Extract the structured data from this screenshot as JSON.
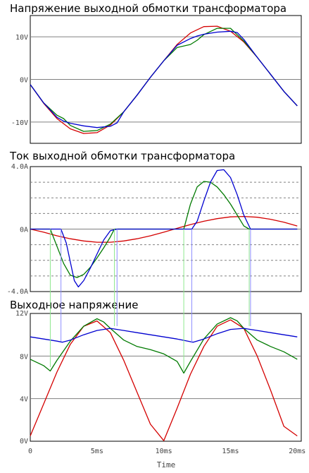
{
  "colors": {
    "background": "#ffffff",
    "frame": "#000000",
    "grid": "#808080",
    "tick_text": "#444444",
    "red": "#d40000",
    "green": "#007a00",
    "blue": "#0000d0",
    "light_green": "#8fe88f",
    "light_blue": "#8f8fff"
  },
  "chart_data": [
    {
      "type": "line",
      "title": "Напряжение выходной обмотки трансформатора",
      "xlabel": "",
      "ylabel": "",
      "xlim_ms": [
        0,
        20.3
      ],
      "ylim": [
        -15,
        15
      ],
      "yticks": [
        {
          "value": 10,
          "label": "10V"
        },
        {
          "value": 0,
          "label": "0V"
        },
        {
          "value": -10,
          "label": "-10V"
        }
      ],
      "series": [
        {
          "color": "red",
          "x": [
            0,
            1,
            2,
            3,
            4,
            5,
            6,
            7,
            8,
            9,
            10,
            11,
            12,
            13,
            14,
            15,
            16,
            17,
            18,
            19,
            20
          ],
          "y": [
            -1.2,
            -5.6,
            -9.2,
            -11.6,
            -12.7,
            -12.5,
            -10.7,
            -7.6,
            -3.7,
            0.5,
            4.4,
            8.2,
            10.9,
            12.4,
            12.5,
            11.3,
            8.8,
            5.2,
            1.2,
            -2.8,
            -6.2
          ]
        },
        {
          "color": "green",
          "x": [
            0,
            1,
            2,
            2.5,
            3,
            4,
            5,
            6,
            7,
            8,
            9,
            10,
            11,
            12,
            12.5,
            13,
            14,
            15,
            16,
            17,
            18,
            19,
            20
          ],
          "y": [
            -1.2,
            -5.5,
            -8.4,
            -9.2,
            -10.8,
            -12.2,
            -12.0,
            -10.5,
            -7.6,
            -3.7,
            0.5,
            4.4,
            7.5,
            8.2,
            9.2,
            10.5,
            12.0,
            12.0,
            9.0,
            5.2,
            1.2,
            -2.8,
            -6.2
          ]
        },
        {
          "color": "blue",
          "x": [
            0,
            1,
            2,
            2.5,
            3,
            4,
            5,
            6,
            6.5,
            7,
            8,
            9,
            10,
            11,
            12,
            12.5,
            13,
            14,
            15,
            15.5,
            16,
            17,
            18,
            19,
            20
          ],
          "y": [
            -1.2,
            -5.5,
            -8.9,
            -9.8,
            -10.3,
            -10.9,
            -11.3,
            -11.0,
            -10.2,
            -7.6,
            -3.7,
            0.5,
            4.4,
            8.0,
            9.6,
            10.2,
            10.6,
            11.1,
            11.3,
            11.0,
            9.4,
            5.2,
            1.2,
            -2.8,
            -6.2
          ]
        }
      ]
    },
    {
      "type": "line",
      "title": "Ток выходной обмотки трансформатора",
      "xlabel": "",
      "ylabel": "",
      "xlim_ms": [
        0,
        20.3
      ],
      "ylim": [
        -4,
        4
      ],
      "yticks": [
        {
          "value": 4,
          "label": "4.0A"
        },
        {
          "value": 0,
          "label": "0A"
        },
        {
          "value": -4,
          "label": "-4.0A"
        }
      ],
      "series": [
        {
          "color": "red",
          "x": [
            0,
            1,
            2,
            3,
            4,
            5,
            6,
            7,
            8,
            9,
            10,
            11,
            12,
            13,
            14,
            15,
            16,
            17,
            18,
            19,
            20
          ],
          "y": [
            0,
            -0.2,
            -0.43,
            -0.62,
            -0.76,
            -0.84,
            -0.84,
            -0.76,
            -0.62,
            -0.43,
            -0.2,
            0.05,
            0.29,
            0.5,
            0.67,
            0.78,
            0.81,
            0.76,
            0.63,
            0.44,
            0.2
          ]
        },
        {
          "color": "green",
          "x": [
            0,
            1.5,
            2,
            2.5,
            3,
            3.5,
            4,
            4.5,
            5,
            5.5,
            6,
            6.3,
            11.5,
            12,
            12.5,
            13,
            13.5,
            14,
            14.5,
            15,
            15.5,
            16,
            16.4,
            20
          ],
          "y": [
            0,
            0,
            -1.1,
            -2.2,
            -2.95,
            -3.1,
            -2.9,
            -2.45,
            -1.85,
            -1.2,
            -0.5,
            0,
            0,
            1.6,
            2.7,
            3.05,
            3.0,
            2.7,
            2.2,
            1.6,
            0.9,
            0.2,
            0,
            0
          ]
        },
        {
          "color": "blue",
          "x": [
            0,
            2.3,
            2.7,
            3,
            3.3,
            3.6,
            4,
            4.5,
            5,
            5.5,
            6,
            6.5,
            12.1,
            12.5,
            13,
            13.5,
            14,
            14.5,
            15,
            15.5,
            16,
            16.5,
            20
          ],
          "y": [
            0,
            0,
            -0.9,
            -2.1,
            -3.3,
            -3.7,
            -3.3,
            -2.5,
            -1.6,
            -0.7,
            -0.1,
            0,
            0,
            0.5,
            1.8,
            3.0,
            3.75,
            3.8,
            3.3,
            2.2,
            0.9,
            0,
            0
          ]
        }
      ]
    },
    {
      "type": "line",
      "title": "Выходное напряжение",
      "xlabel": "Time",
      "ylabel": "",
      "xlim_ms": [
        0,
        20.3
      ],
      "ylim": [
        0,
        12
      ],
      "yticks": [
        {
          "value": 12,
          "label": "12V"
        },
        {
          "value": 8,
          "label": "8V"
        },
        {
          "value": 4,
          "label": "4V"
        },
        {
          "value": 0,
          "label": "0V"
        }
      ],
      "xticks": [
        {
          "value": 0,
          "label": "0"
        },
        {
          "value": 5,
          "label": "5ms"
        },
        {
          "value": 10,
          "label": "10ms"
        },
        {
          "value": 15,
          "label": "15ms"
        },
        {
          "value": 20,
          "label": "20ms"
        }
      ],
      "series": [
        {
          "color": "red",
          "x": [
            0,
            1,
            2,
            3,
            4,
            5,
            6,
            7,
            8,
            9,
            10,
            11,
            12,
            13,
            14,
            15,
            16,
            17,
            18,
            19,
            20
          ],
          "y": [
            0.5,
            3.5,
            6.5,
            9.1,
            10.8,
            11.3,
            10.2,
            7.6,
            4.6,
            1.6,
            0.05,
            3.1,
            6.3,
            8.9,
            10.8,
            11.4,
            10.6,
            8.0,
            4.8,
            1.4,
            0.5
          ]
        },
        {
          "color": "green",
          "x": [
            0,
            1,
            1.5,
            2,
            3,
            4,
            5,
            5.5,
            6,
            7,
            8,
            9,
            10,
            11,
            11.5,
            12,
            13,
            14,
            15,
            15.5,
            16,
            17,
            18,
            19,
            20
          ],
          "y": [
            7.7,
            7.1,
            6.6,
            7.6,
            9.4,
            10.8,
            11.5,
            11.2,
            10.6,
            9.5,
            8.9,
            8.6,
            8.2,
            7.5,
            6.4,
            7.5,
            9.6,
            11.0,
            11.6,
            11.3,
            10.6,
            9.5,
            8.9,
            8.4,
            7.7
          ]
        },
        {
          "color": "blue",
          "x": [
            0,
            1,
            2,
            2.4,
            3,
            4,
            5,
            6,
            7,
            8,
            9,
            10,
            11,
            12,
            12.2,
            13,
            14,
            15,
            16,
            17,
            18,
            19,
            20
          ],
          "y": [
            9.8,
            9.6,
            9.4,
            9.3,
            9.5,
            10.0,
            10.4,
            10.6,
            10.4,
            10.2,
            10.0,
            9.8,
            9.6,
            9.35,
            9.3,
            9.6,
            10.1,
            10.5,
            10.6,
            10.4,
            10.2,
            10.0,
            9.8
          ]
        }
      ]
    }
  ]
}
